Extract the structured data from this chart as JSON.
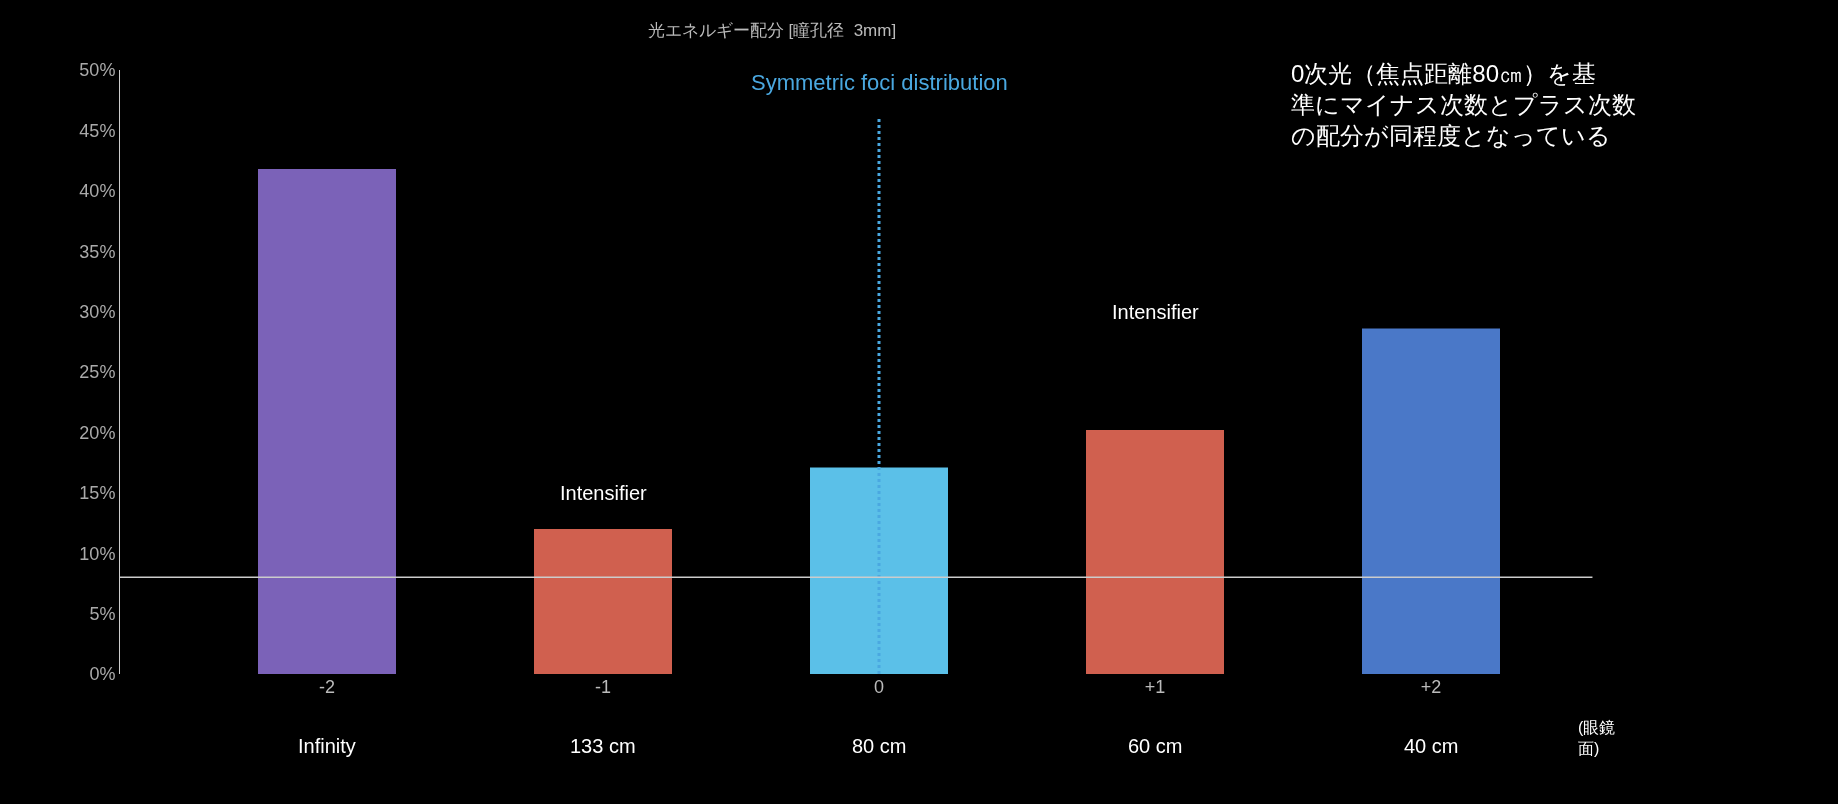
{
  "chart_data": {
    "type": "bar",
    "title": "光エネルギー配分 [瞳孔径  3mm]",
    "categories": [
      "-2",
      "-1",
      "0",
      "+1",
      "+2"
    ],
    "values": [
      41.8,
      12,
      17.1,
      20.2,
      28.6
    ],
    "colors": [
      "#7b62b8",
      "#d0604f",
      "#5bc0e8",
      "#d0604f",
      "#4a78c8"
    ],
    "ylim": [
      0,
      50
    ],
    "yticks": [
      {
        "value": 0,
        "label": "0%"
      },
      {
        "value": 5,
        "label": "5%"
      },
      {
        "value": 10,
        "label": "10%"
      },
      {
        "value": 15,
        "label": "15%"
      },
      {
        "value": 20,
        "label": "20%"
      },
      {
        "value": 25,
        "label": "25%"
      },
      {
        "value": 30,
        "label": "30%"
      },
      {
        "value": 35,
        "label": "35%"
      },
      {
        "value": 40,
        "label": "40%"
      },
      {
        "value": 45,
        "label": "45%"
      },
      {
        "value": 50,
        "label": "50%"
      }
    ],
    "grid": false,
    "legend": false,
    "ref_lines": [
      {
        "axis": "x",
        "value": "0",
        "label": "Symmetric foci distribution",
        "color": "#4aa8e0",
        "line_style": "dotted"
      },
      {
        "axis": "y",
        "value": 8,
        "color": "#cccccc",
        "line_style": "solid"
      }
    ],
    "annotations": [
      "Intensifier",
      "Intensifier",
      "Infinity",
      "133 cm",
      "80 cm",
      "60 cm",
      "40 cm",
      "(眼鏡面)",
      "0次光（焦点距離80㎝）を基準にマイナス次数とプラス次数の配分が同程度となっている"
    ]
  }
}
